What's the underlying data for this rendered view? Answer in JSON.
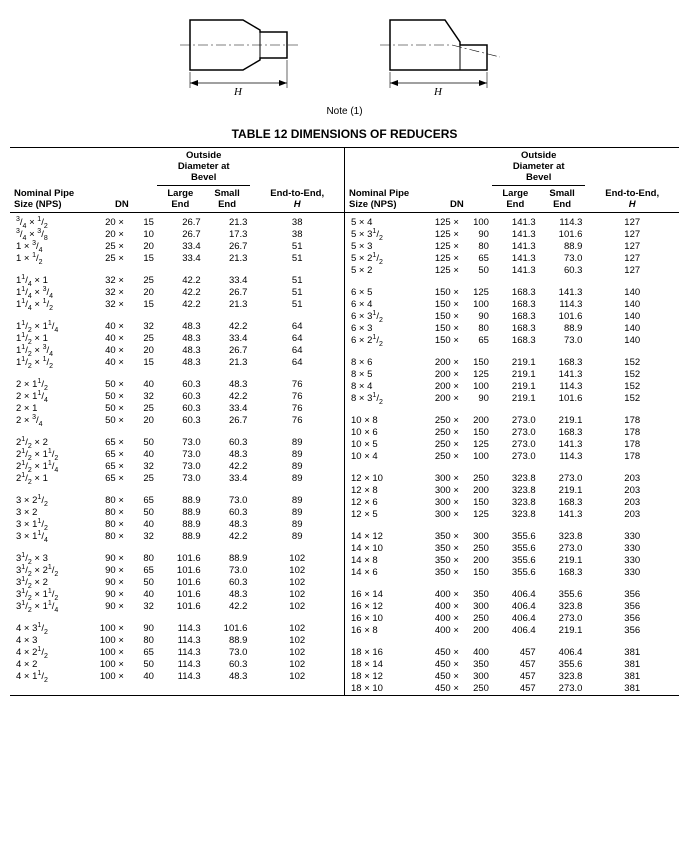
{
  "note": "Note (1)",
  "title": "TABLE 12   DIMENSIONS OF REDUCERS",
  "diagram": {
    "H_label": "H"
  },
  "headers": {
    "nps": "Nominal Pipe\nSize (NPS)",
    "dn": "DN",
    "od_group": "Outside\nDiameter at\nBevel",
    "large": "Large\nEnd",
    "small": "Small\nEnd",
    "h": "End-to-End,\nH"
  },
  "left": [
    [
      {
        "nps_html": "<sup>3</sup>/<sub>4</sub> × <sup>1</sup>/<sub>2</sub>",
        "dn": "20 ×",
        "dn2": "15",
        "lg": "26.7",
        "sm": "21.3",
        "h": "38"
      },
      {
        "nps_html": "<sup>3</sup>/<sub>4</sub> × <sup>3</sup>/<sub>8</sub>",
        "dn": "20 ×",
        "dn2": "10",
        "lg": "26.7",
        "sm": "17.3",
        "h": "38"
      },
      {
        "nps_html": "1 × <sup>3</sup>/<sub>4</sub>",
        "dn": "25 ×",
        "dn2": "20",
        "lg": "33.4",
        "sm": "26.7",
        "h": "51"
      },
      {
        "nps_html": "1 × <sup>1</sup>/<sub>2</sub>",
        "dn": "25 ×",
        "dn2": "15",
        "lg": "33.4",
        "sm": "21.3",
        "h": "51"
      }
    ],
    [
      {
        "nps_html": "1<sup>1</sup>/<sub>4</sub> × 1",
        "dn": "32 ×",
        "dn2": "25",
        "lg": "42.2",
        "sm": "33.4",
        "h": "51"
      },
      {
        "nps_html": "1<sup>1</sup>/<sub>4</sub> × <sup>3</sup>/<sub>4</sub>",
        "dn": "32 ×",
        "dn2": "20",
        "lg": "42.2",
        "sm": "26.7",
        "h": "51"
      },
      {
        "nps_html": "1<sup>1</sup>/<sub>4</sub> × <sup>1</sup>/<sub>2</sub>",
        "dn": "32 ×",
        "dn2": "15",
        "lg": "42.2",
        "sm": "21.3",
        "h": "51"
      }
    ],
    [
      {
        "nps_html": "1<sup>1</sup>/<sub>2</sub> × 1<sup>1</sup>/<sub>4</sub>",
        "dn": "40 ×",
        "dn2": "32",
        "lg": "48.3",
        "sm": "42.2",
        "h": "64"
      },
      {
        "nps_html": "1<sup>1</sup>/<sub>2</sub> × 1",
        "dn": "40 ×",
        "dn2": "25",
        "lg": "48.3",
        "sm": "33.4",
        "h": "64"
      },
      {
        "nps_html": "1<sup>1</sup>/<sub>2</sub> × <sup>3</sup>/<sub>4</sub>",
        "dn": "40 ×",
        "dn2": "20",
        "lg": "48.3",
        "sm": "26.7",
        "h": "64"
      },
      {
        "nps_html": "1<sup>1</sup>/<sub>2</sub> × <sup>1</sup>/<sub>2</sub>",
        "dn": "40 ×",
        "dn2": "15",
        "lg": "48.3",
        "sm": "21.3",
        "h": "64"
      }
    ],
    [
      {
        "nps_html": "2 × 1<sup>1</sup>/<sub>2</sub>",
        "dn": "50 ×",
        "dn2": "40",
        "lg": "60.3",
        "sm": "48.3",
        "h": "76"
      },
      {
        "nps_html": "2 × 1<sup>1</sup>/<sub>4</sub>",
        "dn": "50 ×",
        "dn2": "32",
        "lg": "60.3",
        "sm": "42.2",
        "h": "76"
      },
      {
        "nps_html": "2 × 1",
        "dn": "50 ×",
        "dn2": "25",
        "lg": "60.3",
        "sm": "33.4",
        "h": "76"
      },
      {
        "nps_html": "2 × <sup>3</sup>/<sub>4</sub>",
        "dn": "50 ×",
        "dn2": "20",
        "lg": "60.3",
        "sm": "26.7",
        "h": "76"
      }
    ],
    [
      {
        "nps_html": "2<sup>1</sup>/<sub>2</sub> × 2",
        "dn": "65 ×",
        "dn2": "50",
        "lg": "73.0",
        "sm": "60.3",
        "h": "89"
      },
      {
        "nps_html": "2<sup>1</sup>/<sub>2</sub> × 1<sup>1</sup>/<sub>2</sub>",
        "dn": "65 ×",
        "dn2": "40",
        "lg": "73.0",
        "sm": "48.3",
        "h": "89"
      },
      {
        "nps_html": "2<sup>1</sup>/<sub>2</sub> × 1<sup>1</sup>/<sub>4</sub>",
        "dn": "65 ×",
        "dn2": "32",
        "lg": "73.0",
        "sm": "42.2",
        "h": "89"
      },
      {
        "nps_html": "2<sup>1</sup>/<sub>2</sub> × 1",
        "dn": "65 ×",
        "dn2": "25",
        "lg": "73.0",
        "sm": "33.4",
        "h": "89"
      }
    ],
    [
      {
        "nps_html": "3 × 2<sup>1</sup>/<sub>2</sub>",
        "dn": "80 ×",
        "dn2": "65",
        "lg": "88.9",
        "sm": "73.0",
        "h": "89"
      },
      {
        "nps_html": "3 × 2",
        "dn": "80 ×",
        "dn2": "50",
        "lg": "88.9",
        "sm": "60.3",
        "h": "89"
      },
      {
        "nps_html": "3 × 1<sup>1</sup>/<sub>2</sub>",
        "dn": "80 ×",
        "dn2": "40",
        "lg": "88.9",
        "sm": "48.3",
        "h": "89"
      },
      {
        "nps_html": "3 × 1<sup>1</sup>/<sub>4</sub>",
        "dn": "80 ×",
        "dn2": "32",
        "lg": "88.9",
        "sm": "42.2",
        "h": "89"
      }
    ],
    [
      {
        "nps_html": "3<sup>1</sup>/<sub>2</sub> × 3",
        "dn": "90 ×",
        "dn2": "80",
        "lg": "101.6",
        "sm": "88.9",
        "h": "102"
      },
      {
        "nps_html": "3<sup>1</sup>/<sub>2</sub> × 2<sup>1</sup>/<sub>2</sub>",
        "dn": "90 ×",
        "dn2": "65",
        "lg": "101.6",
        "sm": "73.0",
        "h": "102"
      },
      {
        "nps_html": "3<sup>1</sup>/<sub>2</sub> × 2",
        "dn": "90 ×",
        "dn2": "50",
        "lg": "101.6",
        "sm": "60.3",
        "h": "102"
      },
      {
        "nps_html": "3<sup>1</sup>/<sub>2</sub> × 1<sup>1</sup>/<sub>2</sub>",
        "dn": "90 ×",
        "dn2": "40",
        "lg": "101.6",
        "sm": "48.3",
        "h": "102"
      },
      {
        "nps_html": "3<sup>1</sup>/<sub>2</sub> × 1<sup>1</sup>/<sub>4</sub>",
        "dn": "90 ×",
        "dn2": "32",
        "lg": "101.6",
        "sm": "42.2",
        "h": "102"
      }
    ],
    [
      {
        "nps_html": "4 × 3<sup>1</sup>/<sub>2</sub>",
        "dn": "100 ×",
        "dn2": "90",
        "lg": "114.3",
        "sm": "101.6",
        "h": "102"
      },
      {
        "nps_html": "4 × 3",
        "dn": "100 ×",
        "dn2": "80",
        "lg": "114.3",
        "sm": "88.9",
        "h": "102"
      },
      {
        "nps_html": "4 × 2<sup>1</sup>/<sub>2</sub>",
        "dn": "100 ×",
        "dn2": "65",
        "lg": "114.3",
        "sm": "73.0",
        "h": "102"
      },
      {
        "nps_html": "4 × 2",
        "dn": "100 ×",
        "dn2": "50",
        "lg": "114.3",
        "sm": "60.3",
        "h": "102"
      },
      {
        "nps_html": "4 × 1<sup>1</sup>/<sub>2</sub>",
        "dn": "100 ×",
        "dn2": "40",
        "lg": "114.3",
        "sm": "48.3",
        "h": "102"
      }
    ]
  ],
  "right": [
    [
      {
        "nps_html": "5 × 4",
        "dn": "125 ×",
        "dn2": "100",
        "lg": "141.3",
        "sm": "114.3",
        "h": "127"
      },
      {
        "nps_html": "5 × 3<sup>1</sup>/<sub>2</sub>",
        "dn": "125 ×",
        "dn2": "90",
        "lg": "141.3",
        "sm": "101.6",
        "h": "127"
      },
      {
        "nps_html": "5 × 3",
        "dn": "125 ×",
        "dn2": "80",
        "lg": "141.3",
        "sm": "88.9",
        "h": "127"
      },
      {
        "nps_html": "5 × 2<sup>1</sup>/<sub>2</sub>",
        "dn": "125 ×",
        "dn2": "65",
        "lg": "141.3",
        "sm": "73.0",
        "h": "127"
      },
      {
        "nps_html": "5 × 2",
        "dn": "125 ×",
        "dn2": "50",
        "lg": "141.3",
        "sm": "60.3",
        "h": "127"
      }
    ],
    [
      {
        "nps_html": "6 × 5",
        "dn": "150 ×",
        "dn2": "125",
        "lg": "168.3",
        "sm": "141.3",
        "h": "140"
      },
      {
        "nps_html": "6 × 4",
        "dn": "150 ×",
        "dn2": "100",
        "lg": "168.3",
        "sm": "114.3",
        "h": "140"
      },
      {
        "nps_html": "6 × 3<sup>1</sup>/<sub>2</sub>",
        "dn": "150 ×",
        "dn2": "90",
        "lg": "168.3",
        "sm": "101.6",
        "h": "140"
      },
      {
        "nps_html": "6 × 3",
        "dn": "150 ×",
        "dn2": "80",
        "lg": "168.3",
        "sm": "88.9",
        "h": "140"
      },
      {
        "nps_html": "6 × 2<sup>1</sup>/<sub>2</sub>",
        "dn": "150 ×",
        "dn2": "65",
        "lg": "168.3",
        "sm": "73.0",
        "h": "140"
      }
    ],
    [
      {
        "nps_html": "8 × 6",
        "dn": "200 ×",
        "dn2": "150",
        "lg": "219.1",
        "sm": "168.3",
        "h": "152"
      },
      {
        "nps_html": "8 × 5",
        "dn": "200 ×",
        "dn2": "125",
        "lg": "219.1",
        "sm": "141.3",
        "h": "152"
      },
      {
        "nps_html": "8 × 4",
        "dn": "200 ×",
        "dn2": "100",
        "lg": "219.1",
        "sm": "114.3",
        "h": "152"
      },
      {
        "nps_html": "8 × 3<sup>1</sup>/<sub>2</sub>",
        "dn": "200 ×",
        "dn2": "90",
        "lg": "219.1",
        "sm": "101.6",
        "h": "152"
      }
    ],
    [
      {
        "nps_html": "10 × 8",
        "dn": "250 ×",
        "dn2": "200",
        "lg": "273.0",
        "sm": "219.1",
        "h": "178"
      },
      {
        "nps_html": "10 × 6",
        "dn": "250 ×",
        "dn2": "150",
        "lg": "273.0",
        "sm": "168.3",
        "h": "178"
      },
      {
        "nps_html": "10 × 5",
        "dn": "250 ×",
        "dn2": "125",
        "lg": "273.0",
        "sm": "141.3",
        "h": "178"
      },
      {
        "nps_html": "10 × 4",
        "dn": "250 ×",
        "dn2": "100",
        "lg": "273.0",
        "sm": "114.3",
        "h": "178"
      }
    ],
    [
      {
        "nps_html": "12 × 10",
        "dn": "300 ×",
        "dn2": "250",
        "lg": "323.8",
        "sm": "273.0",
        "h": "203"
      },
      {
        "nps_html": "12 × 8",
        "dn": "300 ×",
        "dn2": "200",
        "lg": "323.8",
        "sm": "219.1",
        "h": "203"
      },
      {
        "nps_html": "12 × 6",
        "dn": "300 ×",
        "dn2": "150",
        "lg": "323.8",
        "sm": "168.3",
        "h": "203"
      },
      {
        "nps_html": "12 × 5",
        "dn": "300 ×",
        "dn2": "125",
        "lg": "323.8",
        "sm": "141.3",
        "h": "203"
      }
    ],
    [
      {
        "nps_html": "14 × 12",
        "dn": "350 ×",
        "dn2": "300",
        "lg": "355.6",
        "sm": "323.8",
        "h": "330"
      },
      {
        "nps_html": "14 × 10",
        "dn": "350 ×",
        "dn2": "250",
        "lg": "355.6",
        "sm": "273.0",
        "h": "330"
      },
      {
        "nps_html": "14 × 8",
        "dn": "350 ×",
        "dn2": "200",
        "lg": "355.6",
        "sm": "219.1",
        "h": "330"
      },
      {
        "nps_html": "14 × 6",
        "dn": "350 ×",
        "dn2": "150",
        "lg": "355.6",
        "sm": "168.3",
        "h": "330"
      }
    ],
    [
      {
        "nps_html": "16 × 14",
        "dn": "400 ×",
        "dn2": "350",
        "lg": "406.4",
        "sm": "355.6",
        "h": "356"
      },
      {
        "nps_html": "16 × 12",
        "dn": "400 ×",
        "dn2": "300",
        "lg": "406.4",
        "sm": "323.8",
        "h": "356"
      },
      {
        "nps_html": "16 × 10",
        "dn": "400 ×",
        "dn2": "250",
        "lg": "406.4",
        "sm": "273.0",
        "h": "356"
      },
      {
        "nps_html": "16 × 8",
        "dn": "400 ×",
        "dn2": "200",
        "lg": "406.4",
        "sm": "219.1",
        "h": "356"
      }
    ],
    [
      {
        "nps_html": "18 × 16",
        "dn": "450 ×",
        "dn2": "400",
        "lg": "457",
        "sm": "406.4",
        "h": "381"
      },
      {
        "nps_html": "18 × 14",
        "dn": "450 ×",
        "dn2": "350",
        "lg": "457",
        "sm": "355.6",
        "h": "381"
      },
      {
        "nps_html": "18 × 12",
        "dn": "450 ×",
        "dn2": "300",
        "lg": "457",
        "sm": "323.8",
        "h": "381"
      },
      {
        "nps_html": "18 × 10",
        "dn": "450 ×",
        "dn2": "250",
        "lg": "457",
        "sm": "273.0",
        "h": "381"
      }
    ]
  ]
}
